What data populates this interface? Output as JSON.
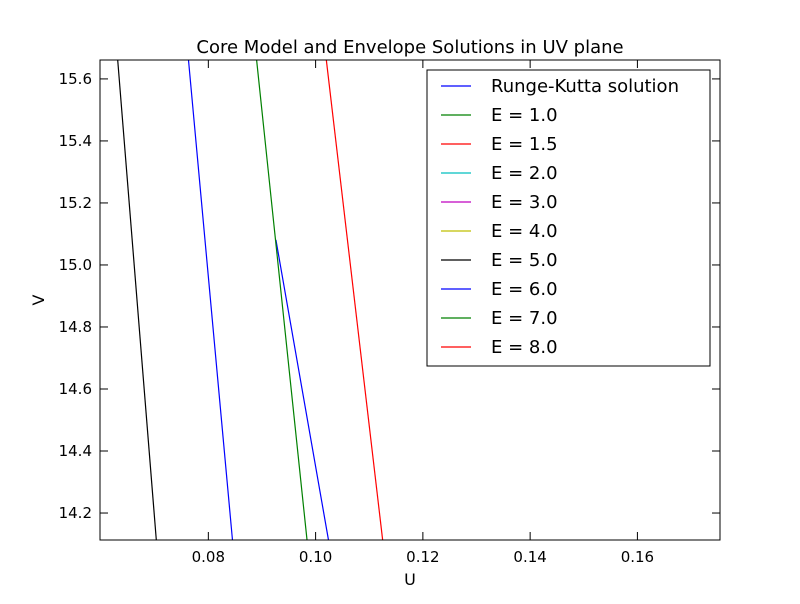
{
  "chart_data": {
    "type": "line",
    "title": "Core Model and Envelope Solutions in UV plane",
    "xlabel": "U",
    "ylabel": "V",
    "xlim": [
      0.0598,
      0.1754
    ],
    "ylim": [
      14.113,
      15.661
    ],
    "xticks": [
      0.08,
      0.1,
      0.12,
      0.14,
      0.16
    ],
    "xtick_labels": [
      "0.08",
      "0.10",
      "0.12",
      "0.14",
      "0.16"
    ],
    "yticks": [
      14.2,
      14.4,
      14.6,
      14.8,
      15.0,
      15.2,
      15.4,
      15.6
    ],
    "ytick_labels": [
      "14.2",
      "14.4",
      "14.6",
      "14.8",
      "15.0",
      "15.2",
      "15.4",
      "15.6"
    ],
    "grid": false,
    "legend_position": "top-right",
    "series": [
      {
        "name": "Runge-Kutta solution",
        "color": "#0000ff",
        "x": [
          0.0926,
          0.1024
        ],
        "y": [
          15.081,
          14.113
        ]
      },
      {
        "name": "E = 1.0",
        "color": "#008000",
        "x": [
          0.089,
          0.0984
        ],
        "y": [
          15.661,
          14.113
        ]
      },
      {
        "name": "E = 1.5",
        "color": "#ff0000",
        "x": [
          0.102,
          0.1125
        ],
        "y": [
          15.661,
          14.113
        ]
      },
      {
        "name": "E = 2.0",
        "color": "#00bfbf",
        "x": [],
        "y": []
      },
      {
        "name": "E = 3.0",
        "color": "#bf00bf",
        "x": [],
        "y": []
      },
      {
        "name": "E = 4.0",
        "color": "#bfbf00",
        "x": [],
        "y": []
      },
      {
        "name": "E = 5.0",
        "color": "#000000",
        "x": [
          0.0631,
          0.0703
        ],
        "y": [
          15.661,
          14.113
        ]
      },
      {
        "name": "E = 6.0",
        "color": "#0000ff",
        "x": [
          0.0763,
          0.0845
        ],
        "y": [
          15.661,
          14.113
        ]
      },
      {
        "name": "E = 7.0",
        "color": "#008000",
        "x": [],
        "y": []
      },
      {
        "name": "E = 8.0",
        "color": "#ff0000",
        "x": [],
        "y": []
      }
    ]
  }
}
